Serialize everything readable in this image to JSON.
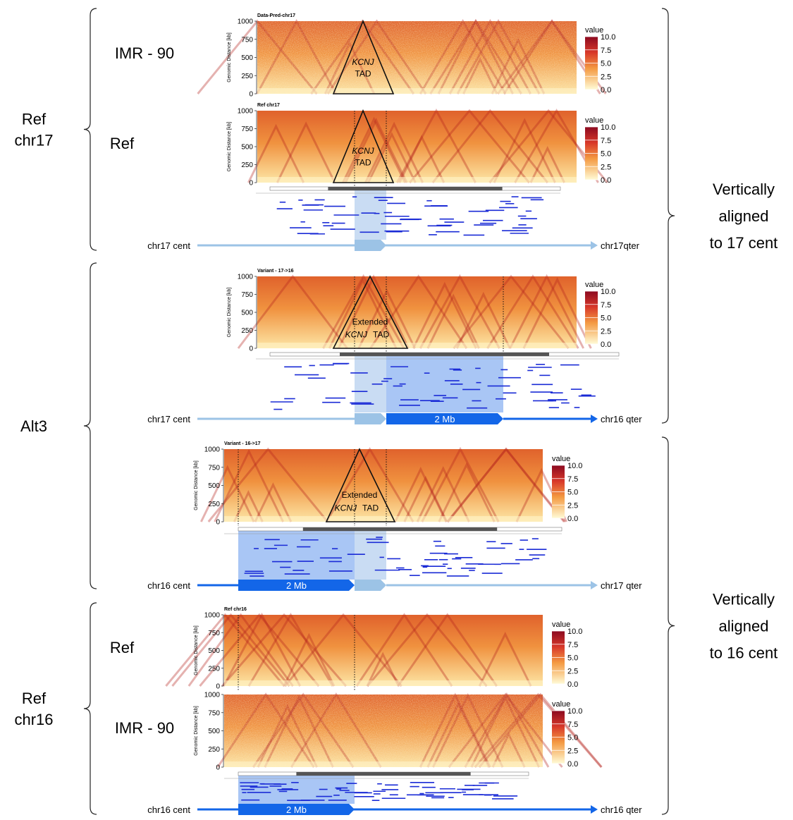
{
  "groups": [
    {
      "label": [
        "Ref",
        "chr17"
      ]
    },
    {
      "label": [
        "Alt3"
      ]
    },
    {
      "label": [
        "Ref",
        "chr16"
      ]
    }
  ],
  "notes": [
    [
      "Vertically",
      "aligned",
      "to 17 cent"
    ],
    [
      "Vertically",
      "aligned",
      "to 16 cent"
    ]
  ],
  "panels": [
    {
      "title": "Data-Pred-chr17",
      "row_label": "IMR - 90",
      "y_label": "Genomic Distance [kb]",
      "ylim": [
        0,
        1000
      ],
      "yticks": [
        0,
        250,
        500,
        750,
        1000
      ],
      "legend_title": "value",
      "legend_lim": [
        0,
        10
      ],
      "legend_ticks": [
        {
          "value": 0,
          "label": "0.0"
        },
        {
          "value": 2.5,
          "label": "2.5"
        },
        {
          "value": 5,
          "label": "5.0"
        },
        {
          "value": 7.5,
          "label": "7.5"
        },
        {
          "value": 10,
          "label": "10.0"
        }
      ],
      "annotation": {
        "gene": "KCNJ",
        "tail": "TAD"
      }
    },
    {
      "title": "Ref chr17",
      "row_label": "Ref",
      "y_label": "Genomic Distance [kb]",
      "ylim": [
        0,
        1000
      ],
      "yticks": [
        0,
        250,
        500,
        750,
        1000
      ],
      "legend_title": "value",
      "legend_lim": [
        0,
        10
      ],
      "legend_ticks": [
        {
          "value": 0,
          "label": "0.0"
        },
        {
          "value": 2.5,
          "label": "2.5"
        },
        {
          "value": 5,
          "label": "5.0"
        },
        {
          "value": 7.5,
          "label": "7.5"
        },
        {
          "value": 10,
          "label": "10.0"
        }
      ],
      "annotation": {
        "gene": "KCNJ",
        "tail": "TAD"
      }
    },
    {
      "title": "Variant - 17->16",
      "y_label": "Genomic Distance [kb]",
      "ylim": [
        0,
        1000
      ],
      "yticks": [
        0,
        250,
        500,
        750,
        1000
      ],
      "legend_title": "value",
      "legend_lim": [
        0,
        10
      ],
      "legend_ticks": [
        {
          "value": 0,
          "label": "0.0"
        },
        {
          "value": 2.5,
          "label": "2.5"
        },
        {
          "value": 5,
          "label": "5.0"
        },
        {
          "value": 7.5,
          "label": "7.5"
        },
        {
          "value": 10,
          "label": "10.0"
        }
      ],
      "annotation": {
        "line1": "Extended",
        "gene": "KCNJ",
        "tail": "TAD"
      }
    },
    {
      "title": "Variant - 16->17",
      "y_label": "Genomic Distance [kb]",
      "ylim": [
        0,
        1000
      ],
      "yticks": [
        0,
        250,
        500,
        750,
        1000
      ],
      "legend_title": "value",
      "legend_lim": [
        0,
        10
      ],
      "legend_ticks": [
        {
          "value": 0,
          "label": "0.0"
        },
        {
          "value": 2.5,
          "label": "2.5"
        },
        {
          "value": 5,
          "label": "5.0"
        },
        {
          "value": 7.5,
          "label": "7.5"
        },
        {
          "value": 10,
          "label": "10.0"
        }
      ],
      "annotation": {
        "line1": "Extended",
        "gene": "KCNJ",
        "tail": "TAD"
      }
    },
    {
      "title": "Ref chr16",
      "row_label": "Ref",
      "y_label": "Genomic Distance [kb]",
      "ylim": [
        0,
        1000
      ],
      "yticks": [
        0,
        250,
        500,
        750,
        1000
      ],
      "legend_title": "value",
      "legend_lim": [
        0,
        10
      ],
      "legend_ticks": [
        {
          "value": 0,
          "label": "0.0"
        },
        {
          "value": 2.5,
          "label": "2.5"
        },
        {
          "value": 5,
          "label": "5.0"
        },
        {
          "value": 7.5,
          "label": "7.5"
        },
        {
          "value": 10,
          "label": "10.0"
        }
      ]
    },
    {
      "row_label": "IMR - 90",
      "y_label": "Genomic Distance [kb]",
      "ylim": [
        0,
        1000
      ],
      "yticks": [
        0,
        250,
        500,
        750,
        1000
      ],
      "legend_title": "value",
      "legend_lim": [
        0,
        10
      ],
      "legend_ticks": [
        {
          "value": 0,
          "label": "0.0"
        },
        {
          "value": 2.5,
          "label": "2.5"
        },
        {
          "value": 5,
          "label": "5.0"
        },
        {
          "value": 7.5,
          "label": "7.5"
        },
        {
          "value": 10,
          "label": "10.0"
        }
      ]
    }
  ],
  "tracks": [
    {
      "start": "chr17 cent",
      "end": "chr17qter"
    },
    {
      "start": "chr17 cent",
      "end": "chr16 qter",
      "block": "2 Mb"
    },
    {
      "start": "chr16 cent",
      "end": "chr17 qter",
      "block": "2 Mb"
    },
    {
      "start": "chr16 cent",
      "end": "chr16 qter",
      "block": "2 Mb"
    }
  ]
}
